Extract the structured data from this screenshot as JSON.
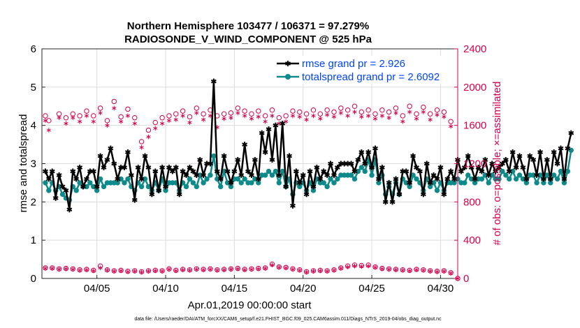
{
  "chart_data": {
    "type": "line",
    "title": "Northern Hemisphere 103477 / 106371 = 97.279%",
    "subtitle": "RADIOSONDE_V_WIND_COMPONENT @ 525 hPa",
    "xlabel": "Apr.01,2019 00:00:00 start",
    "ylabel": "rmse and totalspread",
    "y2label": "# of obs: o=possible; ×=assimilated",
    "xlim": [
      1,
      31.25
    ],
    "ylim": [
      0,
      6
    ],
    "y2lim": [
      0,
      2400
    ],
    "x_ticks": [
      5,
      10,
      15,
      20,
      25,
      30
    ],
    "x_tick_labels": [
      "04/05",
      "04/10",
      "04/15",
      "04/20",
      "04/25",
      "04/30"
    ],
    "y_ticks": [
      0,
      1,
      2,
      3,
      4,
      5,
      6
    ],
    "y_tick_labels": [
      "0",
      "1",
      "2",
      "3",
      "4",
      "5",
      "6"
    ],
    "y2_ticks": [
      0,
      400,
      800,
      1200,
      1600,
      2000,
      2400
    ],
    "y2_tick_labels": [
      "0",
      "400",
      "800",
      "1200",
      "1600",
      "2000",
      "2400"
    ],
    "footnote": "data file: /Users/raeder/DAI/ATM_forcXX/CAM6_setup/f.e21.FHIST_BGC.f09_025.CAM6assim.011/Diags_NTrS_2019-04/obs_diag_output.nc",
    "colors": {
      "rmse": "#000000",
      "spread": "#0e8a8a",
      "obs": "#d6004f",
      "legend_text": "#0044ff"
    },
    "series": [
      {
        "name": "rmse",
        "legend": "rmse grand pr = 2.926",
        "x_start": 1.25,
        "x_step": 0.25,
        "values": [
          2.8,
          2.6,
          2.8,
          2.1,
          2.7,
          2.4,
          2.3,
          1.8,
          2.8,
          2.6,
          2.9,
          2.4,
          2.6,
          2.8,
          2.8,
          2.4,
          3.2,
          2.9,
          3.1,
          3.4,
          3.0,
          2.6,
          2.9,
          2.9,
          3.3,
          2.7,
          2.05,
          2.9,
          2.6,
          3.2,
          2.9,
          2.2,
          2.8,
          2.3,
          2.9,
          2.4,
          2.9,
          2.8,
          2.9,
          2.2,
          2.8,
          2.7,
          2.9,
          2.8,
          2.7,
          3.1,
          2.7,
          3.0,
          3.0,
          5.15,
          2.8,
          2.6,
          3.2,
          2.8,
          2.5,
          2.8,
          3.1,
          2.7,
          3.5,
          2.8,
          2.7,
          3.1,
          2.6,
          3.8,
          3.3,
          3.9,
          3.1,
          4.0,
          2.7,
          4.05,
          2.4,
          3.2,
          1.9,
          2.8,
          2.5,
          2.7,
          2.2,
          2.8,
          2.4,
          2.9,
          2.6,
          2.8,
          2.7,
          3.0,
          2.7,
          2.9,
          3.0,
          3.0,
          3.0,
          3.0,
          2.8,
          3.1,
          3.3,
          3.0,
          3.3,
          2.9,
          3.4,
          2.6,
          2.9,
          2.0,
          2.5,
          2.0,
          2.6,
          2.2,
          2.8,
          2.8,
          2.5,
          3.2,
          2.9,
          2.8,
          2.2,
          3.0,
          2.5,
          2.7,
          2.6,
          2.9,
          2.2,
          2.6,
          2.8,
          2.6,
          3.1,
          2.8,
          2.9,
          3.2,
          2.9,
          2.6,
          2.9,
          2.8,
          3.1,
          2.7,
          3.0,
          2.8,
          2.9,
          3.0,
          3.1,
          2.8,
          3.3,
          2.9,
          3.2,
          2.9,
          2.6,
          3.2,
          3.1,
          2.7,
          3.3,
          2.6,
          3.1,
          2.6,
          3.3,
          3.0,
          3.4,
          2.6,
          3.4,
          3.8
        ]
      },
      {
        "name": "totalspread",
        "legend": "totalspread grand pr = 2.6092",
        "x_start": 1.25,
        "x_step": 0.25,
        "values": [
          2.5,
          2.3,
          2.5,
          2.3,
          2.4,
          2.2,
          2.1,
          2.05,
          2.4,
          2.3,
          2.5,
          2.4,
          2.4,
          2.5,
          2.4,
          2.3,
          2.6,
          2.4,
          2.5,
          2.5,
          2.5,
          2.5,
          2.6,
          2.5,
          2.6,
          2.4,
          2.3,
          2.5,
          2.4,
          2.6,
          2.4,
          2.3,
          2.5,
          2.3,
          2.6,
          2.3,
          2.5,
          2.5,
          2.5,
          2.3,
          2.5,
          2.4,
          2.6,
          2.5,
          2.4,
          2.7,
          2.5,
          2.6,
          2.7,
          3.2,
          2.6,
          2.4,
          2.8,
          2.5,
          2.4,
          2.6,
          2.6,
          2.5,
          2.6,
          2.5,
          2.5,
          2.6,
          2.5,
          2.7,
          2.7,
          2.8,
          2.7,
          2.8,
          2.5,
          2.8,
          2.4,
          2.6,
          2.2,
          2.5,
          2.4,
          2.5,
          2.3,
          2.5,
          2.3,
          2.6,
          2.5,
          2.5,
          2.4,
          2.6,
          2.5,
          2.6,
          2.7,
          2.7,
          2.7,
          2.7,
          2.6,
          2.8,
          2.9,
          2.8,
          3.1,
          2.7,
          3.1,
          2.5,
          2.7,
          2.2,
          2.4,
          2.2,
          2.5,
          2.2,
          2.6,
          2.5,
          2.4,
          2.7,
          2.6,
          2.5,
          2.3,
          2.6,
          2.4,
          2.5,
          2.3,
          2.5,
          2.3,
          2.5,
          2.5,
          2.5,
          2.6,
          2.5,
          2.5,
          2.7,
          2.6,
          2.5,
          2.6,
          2.6,
          2.7,
          2.5,
          2.7,
          2.6,
          2.6,
          2.8,
          2.7,
          2.6,
          2.8,
          2.6,
          2.7,
          2.6,
          2.5,
          2.7,
          2.7,
          2.5,
          2.7,
          2.5,
          2.7,
          2.5,
          2.7,
          2.6,
          2.8,
          2.5,
          2.8,
          3.35
        ]
      },
      {
        "name": "obs_possible_top",
        "axis": "right",
        "marker": "o",
        "x": [
          1.25,
          1.5,
          2.25,
          2.75,
          3.25,
          3.75,
          4.25,
          4.75,
          5.25,
          5.75,
          6.25,
          6.75,
          7.25,
          7.75,
          8.25,
          8.75,
          9.25,
          9.75,
          10.25,
          10.75,
          11.25,
          11.75,
          12.25,
          12.75,
          13.25,
          13.75,
          14.25,
          14.75,
          15.25,
          15.75,
          16.25,
          16.75,
          17.25,
          17.75,
          18.25,
          18.75,
          19.25,
          19.75,
          20.25,
          20.75,
          21.25,
          21.75,
          22.25,
          22.75,
          23.25,
          23.75,
          24.25,
          24.75,
          25.25,
          25.75,
          26.25,
          26.75,
          27.25,
          27.75,
          28.25,
          28.75,
          29.25,
          29.75,
          30.25,
          30.75
        ],
        "values": [
          1700,
          1650,
          1720,
          1680,
          1720,
          1700,
          1750,
          1700,
          1780,
          1650,
          1850,
          1690,
          1770,
          1680,
          1430,
          1550,
          1630,
          1680,
          1700,
          1720,
          1750,
          1690,
          1780,
          1720,
          1760,
          1700,
          1720,
          1730,
          1780,
          1750,
          1720,
          1750,
          1700,
          1760,
          1680,
          1700,
          1750,
          1740,
          1720,
          1760,
          1720,
          1760,
          1740,
          1780,
          1760,
          1800,
          1740,
          1760,
          1720,
          1760,
          1740,
          1780,
          1700,
          1800,
          1720,
          1790,
          1720,
          1760,
          1740,
          1640
        ]
      },
      {
        "name": "obs_assimilated_top",
        "axis": "right",
        "marker": "*",
        "x": [
          1.25,
          1.5,
          2.25,
          2.75,
          3.25,
          3.75,
          4.25,
          4.75,
          5.25,
          5.75,
          6.25,
          6.75,
          7.25,
          7.75,
          8.25,
          8.75,
          9.25,
          9.75,
          10.25,
          10.75,
          11.25,
          11.75,
          12.25,
          12.75,
          13.25,
          13.75,
          14.25,
          14.75,
          15.25,
          15.75,
          16.25,
          16.75,
          17.25,
          17.75,
          18.25,
          18.75,
          19.25,
          19.75,
          20.25,
          20.75,
          21.25,
          21.75,
          22.25,
          22.75,
          23.25,
          23.75,
          24.25,
          24.75,
          25.25,
          25.75,
          26.25,
          26.75,
          27.25,
          27.75,
          28.25,
          28.75,
          29.25,
          29.75,
          30.25,
          30.75
        ],
        "values": [
          1650,
          1550,
          1680,
          1620,
          1680,
          1640,
          1700,
          1640,
          1730,
          1600,
          1780,
          1640,
          1700,
          1620,
          1370,
          1480,
          1570,
          1620,
          1650,
          1660,
          1700,
          1630,
          1730,
          1660,
          1700,
          1580,
          1670,
          1680,
          1730,
          1700,
          1670,
          1690,
          1640,
          1700,
          1620,
          1640,
          1700,
          1690,
          1660,
          1700,
          1670,
          1710,
          1690,
          1730,
          1700,
          1740,
          1690,
          1700,
          1670,
          1700,
          1680,
          1730,
          1640,
          1740,
          1670,
          1740,
          1660,
          1710,
          1690,
          1590
        ]
      },
      {
        "name": "obs_possible_bottom",
        "axis": "right",
        "marker": "o",
        "x": [
          1.25,
          1.75,
          2.25,
          2.75,
          3.25,
          3.75,
          4.25,
          4.75,
          5.25,
          5.75,
          6.25,
          6.75,
          7.25,
          7.75,
          8.25,
          8.75,
          9.25,
          9.75,
          10.25,
          10.75,
          11.25,
          11.75,
          12.25,
          12.75,
          13.25,
          13.75,
          14.25,
          14.75,
          15.25,
          15.75,
          16.25,
          16.75,
          17.25,
          17.75,
          18.25,
          18.75,
          19.25,
          19.75,
          20.25,
          20.75,
          21.25,
          21.75,
          22.25,
          22.75,
          23.25,
          23.75,
          24.25,
          24.75,
          25.25,
          25.75,
          26.25,
          26.75,
          27.25,
          27.75,
          28.25,
          28.75,
          29.25,
          29.75,
          30.25,
          30.75,
          31.25
        ],
        "values": [
          110,
          110,
          100,
          105,
          100,
          90,
          95,
          85,
          130,
          90,
          80,
          85,
          75,
          80,
          70,
          80,
          85,
          80,
          100,
          85,
          95,
          90,
          100,
          95,
          100,
          90,
          95,
          100,
          105,
          95,
          100,
          105,
          110,
          150,
          120,
          115,
          100,
          90,
          70,
          80,
          85,
          80,
          90,
          110,
          130,
          140,
          135,
          140,
          120,
          105,
          100,
          95,
          90,
          85,
          95,
          90,
          80,
          75,
          80,
          60,
          0
        ]
      },
      {
        "name": "obs_assimilated_bottom",
        "axis": "right",
        "marker": "*",
        "x": [
          1.25,
          1.75,
          2.25,
          2.75,
          3.25,
          3.75,
          4.25,
          4.75,
          5.25,
          5.75,
          6.25,
          6.75,
          7.25,
          7.75,
          8.25,
          8.75,
          9.25,
          9.75,
          10.25,
          10.75,
          11.25,
          11.75,
          12.25,
          12.75,
          13.25,
          13.75,
          14.25,
          14.75,
          15.25,
          15.75,
          16.25,
          16.75,
          17.25,
          17.75,
          18.25,
          18.75,
          19.25,
          19.75,
          20.25,
          20.75,
          21.25,
          21.75,
          22.25,
          22.75,
          23.25,
          23.75,
          24.25,
          24.75,
          25.25,
          25.75,
          26.25,
          26.75,
          27.25,
          27.75,
          28.25,
          28.75,
          29.25,
          29.75,
          30.25,
          30.75,
          31.25
        ],
        "values": [
          105,
          105,
          95,
          100,
          95,
          85,
          90,
          80,
          110,
          85,
          75,
          80,
          70,
          75,
          65,
          75,
          80,
          75,
          95,
          80,
          90,
          85,
          95,
          90,
          95,
          85,
          90,
          95,
          100,
          90,
          95,
          100,
          105,
          140,
          115,
          110,
          95,
          85,
          65,
          75,
          80,
          75,
          85,
          105,
          120,
          130,
          125,
          130,
          115,
          100,
          95,
          90,
          85,
          80,
          90,
          85,
          75,
          70,
          75,
          55,
          0
        ]
      }
    ]
  }
}
